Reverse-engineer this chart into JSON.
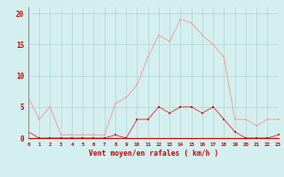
{
  "x": [
    0,
    1,
    2,
    3,
    4,
    5,
    6,
    7,
    8,
    9,
    10,
    11,
    12,
    13,
    14,
    15,
    16,
    17,
    18,
    19,
    20,
    21,
    22,
    23
  ],
  "y_mean": [
    1,
    0,
    0,
    0,
    0,
    0,
    0,
    0,
    0.5,
    0,
    3,
    3,
    5,
    4,
    5,
    5,
    4,
    5,
    3,
    1,
    0,
    0,
    0,
    0.5
  ],
  "y_gust": [
    6.5,
    3,
    5,
    0.5,
    0.5,
    0.5,
    0.5,
    0.5,
    5.5,
    6.5,
    8.5,
    13,
    16.5,
    15.5,
    19,
    18.5,
    16.5,
    15,
    13,
    3,
    3,
    2,
    3,
    3
  ],
  "bg_color": "#d4efef",
  "line_mean_color": "#e05050",
  "line_gust_color": "#f0a8a8",
  "marker_mean_color": "#cc0000",
  "marker_gust_color": "#f0a8a8",
  "grid_color": "#aed4d4",
  "axis_color": "#888888",
  "tick_color": "#cc0000",
  "xlabel": "Vent moyen/en rafales ( km/h )",
  "ylabel_ticks": [
    0,
    5,
    10,
    15,
    20
  ],
  "xlim": [
    0,
    23
  ],
  "ylim": [
    0,
    21
  ]
}
